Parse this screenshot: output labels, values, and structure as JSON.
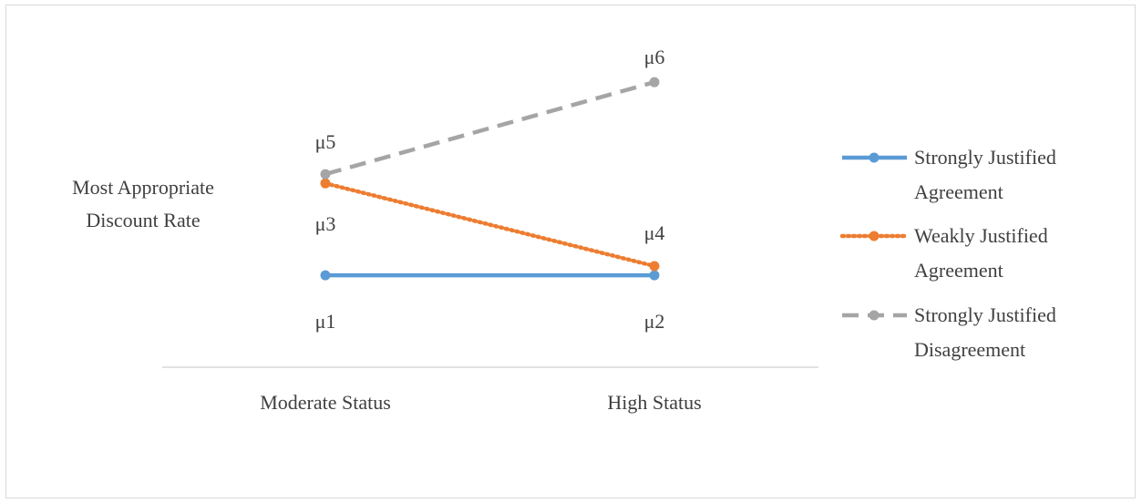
{
  "chart_data": {
    "type": "line",
    "title": "",
    "ylabel": "Most Appropriate Discount Rate",
    "xlabel": "",
    "categories": [
      "Moderate Status",
      "High Status"
    ],
    "series": [
      {
        "name": "Strongly Justified Agreement",
        "color": "#5b9bd5",
        "dash": "solid",
        "values": [
          1.0,
          1.0
        ],
        "point_labels": [
          "μ1",
          "μ2"
        ]
      },
      {
        "name": "Weakly Justified Agreement",
        "color": "#ed7d31",
        "dash": "dotted",
        "values": [
          2.0,
          1.1
        ],
        "point_labels": [
          "μ3",
          "μ4"
        ]
      },
      {
        "name": "Strongly Justified Disagreement",
        "color": "#a5a5a5",
        "dash": "dashed",
        "values": [
          2.1,
          3.1
        ],
        "point_labels": [
          "μ5",
          "μ6"
        ]
      }
    ],
    "ylim": [
      0,
      3.3
    ],
    "grid": false,
    "legend": "right"
  }
}
